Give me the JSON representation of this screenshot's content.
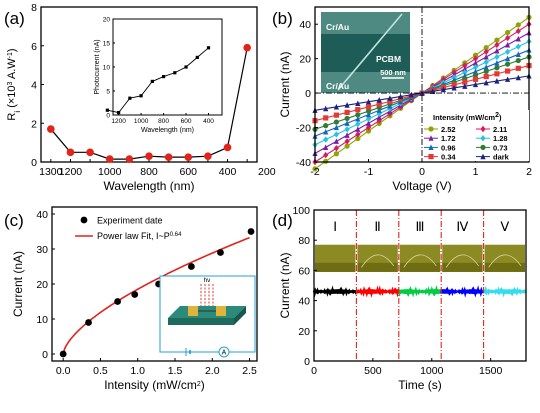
{
  "chart_data": [
    {
      "panel_label": "(a)",
      "type": "line",
      "ylabel": "R",
      "ylabel_sub": "i",
      "ylabel_unit": "(×10",
      "ylabel_unit_sup": "3",
      "ylabel_unit_rest": " A.W",
      "ylabel_unit_sup2": "-1",
      "ylabel_unit_end": ")",
      "xlabel": "Wavelength (nm)",
      "xlim": [
        1350,
        250
      ],
      "ylim": [
        0,
        80
      ],
      "xticks": [
        1300,
        1200,
        1000,
        800,
        600,
        400,
        200
      ],
      "yticks": [
        0,
        20,
        40,
        60,
        80
      ],
      "ytick_labels": [
        "0",
        "2",
        "4",
        "6",
        "8"
      ],
      "xticks_all": [
        1300,
        1200,
        1100,
        1000,
        900,
        800,
        700,
        600,
        500,
        400,
        300
      ],
      "xtick_labels": [
        "1300",
        "1200",
        "1000",
        "800",
        "600",
        "400",
        "200"
      ],
      "series": [
        {
          "x": [
            1300,
            1200,
            1100,
            1000,
            900,
            800,
            700,
            600,
            500,
            400,
            300
          ],
          "y": [
            17,
            5,
            5,
            1.5,
            1.5,
            3,
            2.5,
            2.5,
            3,
            7.5,
            59
          ]
        }
      ],
      "inset": {
        "type": "line",
        "xlabel": "Wavelength (nm)",
        "ylabel": "Photocurrent (nA)",
        "xlim": [
          1250,
          280
        ],
        "ylim": [
          0,
          20
        ],
        "xticks": [
          1200,
          1000,
          800,
          600,
          400
        ],
        "yticks": [
          0,
          5,
          10,
          15,
          20
        ],
        "series": [
          {
            "x": [
              1300,
              1200,
              1100,
              1000,
              900,
              800,
              700,
              600,
              500,
              400
            ],
            "y": [
              1,
              0.5,
              3.5,
              4,
              7,
              8,
              8.8,
              10,
              12,
              14
            ]
          }
        ]
      },
      "color": "#e2231a"
    },
    {
      "panel_label": "(b)",
      "type": "line",
      "xlabel": "Voltage (V)",
      "ylabel": "Current (nA)",
      "xlim": [
        -2,
        2
      ],
      "ylim": [
        -40,
        50
      ],
      "xticks": [
        -2,
        -1,
        0,
        1,
        2
      ],
      "yticks": [
        -40,
        -20,
        0,
        20,
        40
      ],
      "legend_title": "Intensity (mW/cm",
      "legend_title_sup": "2",
      "legend_title_end": ")",
      "legend_position": "bottom-right",
      "series": [
        {
          "name": "2.52",
          "color": "#8fa300",
          "slope": 22,
          "marker": "circle"
        },
        {
          "name": "2.11",
          "color": "#d81b60",
          "slope": 20,
          "marker": "diamond"
        },
        {
          "name": "1.72",
          "color": "#7b1fa2",
          "slope": 17.5,
          "marker": "triangle"
        },
        {
          "name": "1.28",
          "color": "#26c6da",
          "slope": 15,
          "marker": "diamond"
        },
        {
          "name": "0.96",
          "color": "#1565c0",
          "slope": 12.5,
          "marker": "triangle"
        },
        {
          "name": "0.73",
          "color": "#2e7d32",
          "slope": 10.5,
          "marker": "circle"
        },
        {
          "name": "0.34",
          "color": "#e53935",
          "slope": 8,
          "marker": "square"
        },
        {
          "name": "dark",
          "color": "#1a237e",
          "slope": 5,
          "marker": "triangle"
        }
      ],
      "inset_image": {
        "top_label": "Cr/Au",
        "bottom_label": "Cr/Au",
        "center_label": "PCBM",
        "scale_label": "500 nm"
      }
    },
    {
      "panel_label": "(c)",
      "type": "scatter",
      "xlabel": "Intensity (mW/cm",
      "xlabel_sup": "2",
      "xlabel_end": ")",
      "ylabel": "Current (nA)",
      "xlim": [
        -0.15,
        2.6
      ],
      "ylim": [
        -2,
        42
      ],
      "xticks": [
        0.0,
        0.5,
        1.0,
        1.5,
        2.0,
        2.5
      ],
      "xtick_labels": [
        "0.0",
        "0.5",
        "1.0",
        "1.5",
        "2.0",
        "2.5"
      ],
      "yticks": [
        0,
        10,
        20,
        30,
        40
      ],
      "legend_position": "top-left",
      "series": [
        {
          "name": "Experiment date",
          "x": [
            0,
            0.34,
            0.73,
            0.96,
            1.28,
            1.72,
            2.11,
            2.52
          ],
          "y": [
            0,
            9,
            15,
            17,
            20,
            25,
            29,
            35
          ],
          "color": "#000000"
        }
      ],
      "fit": {
        "name": "Power law Fit, I~P",
        "name_sup": "0.64",
        "exponent": 0.64,
        "coef": 18.5,
        "color": "#e2231a"
      },
      "inset_image": {
        "label": "hν",
        "meter": "A"
      }
    },
    {
      "panel_label": "(d)",
      "type": "line",
      "xlabel": "Time (s)",
      "ylabel": "Current (nA)",
      "xlim": [
        0,
        1800
      ],
      "ylim": [
        0,
        100
      ],
      "xticks": [
        0,
        500,
        1000,
        1500
      ],
      "yticks": [
        0,
        20,
        40,
        60,
        80,
        100
      ],
      "dividers": [
        360,
        720,
        1080,
        1440
      ],
      "segment_labels": [
        "Ⅰ",
        "Ⅱ",
        "Ⅲ",
        "Ⅳ",
        "Ⅴ"
      ],
      "series": [
        {
          "x_range": [
            0,
            360
          ],
          "y": 46,
          "color": "#000000"
        },
        {
          "x_range": [
            360,
            720
          ],
          "y": 46,
          "color": "#ff0000"
        },
        {
          "x_range": [
            720,
            1080
          ],
          "y": 46,
          "color": "#00cc44"
        },
        {
          "x_range": [
            1080,
            1440
          ],
          "y": 46,
          "color": "#0000ff"
        },
        {
          "x_range": [
            1440,
            1800
          ],
          "y": 46,
          "color": "#33ddee"
        }
      ]
    }
  ]
}
